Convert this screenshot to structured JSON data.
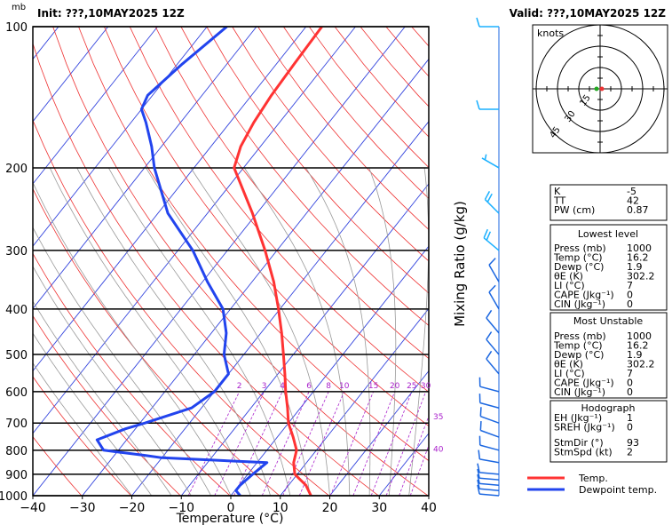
{
  "header": {
    "init": "Init: ???,10MAY2025  12Z",
    "valid": "Valid: ???,10MAY2025  12Z",
    "pressure_unit": "mb"
  },
  "chart_data": {
    "type": "line",
    "title": "",
    "xlabel": "Temperature (°C)",
    "ylabel": "",
    "xlim": [
      -40,
      40
    ],
    "ylim": [
      1000,
      100
    ],
    "y_scale": "log",
    "skew": true,
    "x_ticks": [
      "−40",
      "−30",
      "−20",
      "−10",
      "0",
      "10",
      "20",
      "30",
      "40"
    ],
    "y_ticks": [
      "100",
      "200",
      "300",
      "400",
      "500",
      "600",
      "700",
      "800",
      "900",
      "1000"
    ],
    "mixing_ratio_label": "Mixing Ratio (g/kg)",
    "mixing_ratio_values": [
      "2",
      "3",
      "4",
      "6",
      "8",
      "10",
      "15",
      "20",
      "25",
      "30",
      "35",
      "40"
    ],
    "series": [
      {
        "name": "Temp.",
        "color": "#ff3333",
        "points": [
          [
            1000,
            16.2
          ],
          [
            950,
            13.5
          ],
          [
            925,
            11.5
          ],
          [
            900,
            9.5
          ],
          [
            850,
            7.4
          ],
          [
            800,
            6.0
          ],
          [
            750,
            3.2
          ],
          [
            700,
            0.0
          ],
          [
            650,
            -2.6
          ],
          [
            600,
            -5.6
          ],
          [
            550,
            -8.6
          ],
          [
            500,
            -12.0
          ],
          [
            450,
            -15.8
          ],
          [
            400,
            -20.3
          ],
          [
            350,
            -25.6
          ],
          [
            300,
            -32.4
          ],
          [
            250,
            -40.9
          ],
          [
            200,
            -51.9
          ],
          [
            180,
            -54.0
          ],
          [
            160,
            -55.2
          ],
          [
            140,
            -56.0
          ],
          [
            120,
            -56.4
          ],
          [
            100,
            -56.8
          ]
        ]
      },
      {
        "name": "Dewpoint temp.",
        "color": "#2244ee",
        "points": [
          [
            1000,
            1.9
          ],
          [
            975,
            0.2
          ],
          [
            950,
            0.2
          ],
          [
            900,
            1.0
          ],
          [
            850,
            2.0
          ],
          [
            830,
            -20.0
          ],
          [
            820,
            -24.0
          ],
          [
            800,
            -33.0
          ],
          [
            760,
            -36.0
          ],
          [
            720,
            -32.0
          ],
          [
            700,
            -29.0
          ],
          [
            650,
            -22.0
          ],
          [
            600,
            -20.0
          ],
          [
            550,
            -20.0
          ],
          [
            500,
            -24.0
          ],
          [
            450,
            -27.0
          ],
          [
            400,
            -31.5
          ],
          [
            350,
            -39.0
          ],
          [
            300,
            -47.0
          ],
          [
            250,
            -58.0
          ],
          [
            200,
            -68.0
          ],
          [
            180,
            -72.0
          ],
          [
            160,
            -77.0
          ],
          [
            150,
            -80.0
          ],
          [
            140,
            -81.0
          ],
          [
            120,
            -79.0
          ],
          [
            100,
            -76.0
          ]
        ]
      }
    ],
    "legend": {
      "position": "bottom-right",
      "entries": [
        "Temp.",
        "Dewpoint temp."
      ]
    }
  },
  "wind_barbs": {
    "colors": {
      "upper": "#1ab0ff",
      "lower": "#1a66e0"
    },
    "levels": [
      {
        "p": 100,
        "dir": 270,
        "kt": 10
      },
      {
        "p": 150,
        "dir": 270,
        "kt": 10
      },
      {
        "p": 200,
        "dir": 300,
        "kt": 5
      },
      {
        "p": 250,
        "dir": 315,
        "kt": 20
      },
      {
        "p": 300,
        "dir": 310,
        "kt": 20
      },
      {
        "p": 350,
        "dir": 330,
        "kt": 10
      },
      {
        "p": 400,
        "dir": 330,
        "kt": 10
      },
      {
        "p": 450,
        "dir": 320,
        "kt": 10
      },
      {
        "p": 500,
        "dir": 320,
        "kt": 10
      },
      {
        "p": 550,
        "dir": 320,
        "kt": 10
      },
      {
        "p": 600,
        "dir": 285,
        "kt": 10
      },
      {
        "p": 650,
        "dir": 285,
        "kt": 10
      },
      {
        "p": 700,
        "dir": 290,
        "kt": 10
      },
      {
        "p": 750,
        "dir": 290,
        "kt": 10
      },
      {
        "p": 800,
        "dir": 285,
        "kt": 10
      },
      {
        "p": 850,
        "dir": 280,
        "kt": 10
      },
      {
        "p": 900,
        "dir": 275,
        "kt": 10
      },
      {
        "p": 925,
        "dir": 275,
        "kt": 10
      },
      {
        "p": 950,
        "dir": 275,
        "kt": 10
      },
      {
        "p": 975,
        "dir": 275,
        "kt": 10
      },
      {
        "p": 1000,
        "dir": 275,
        "kt": 10
      }
    ]
  },
  "hodograph": {
    "unit": "knots",
    "ring_labels": [
      "15",
      "30",
      "45"
    ]
  },
  "indices": {
    "top": [
      {
        "label": "K",
        "value": "-5"
      },
      {
        "label": "TT",
        "value": "42"
      },
      {
        "label": "PW (cm)",
        "value": "0.87"
      }
    ],
    "lowest_level": {
      "title": "Lowest level",
      "rows": [
        {
          "label": "Press (mb)",
          "value": "1000"
        },
        {
          "label": "Temp (°C)",
          "value": "16.2"
        },
        {
          "label": "Dewp (°C)",
          "value": "1.9"
        },
        {
          "label": "θE (K)",
          "value": "302.2"
        },
        {
          "label": "LI (°C)",
          "value": "7"
        },
        {
          "label": "CAPE (Jkg⁻¹)",
          "value": "0"
        },
        {
          "label": "CIN (Jkg⁻¹)",
          "value": "0"
        }
      ]
    },
    "most_unstable": {
      "title": "Most Unstable",
      "rows": [
        {
          "label": "Press (mb)",
          "value": "1000"
        },
        {
          "label": "Temp (°C)",
          "value": "16.2"
        },
        {
          "label": "Dewp (°C)",
          "value": "1.9"
        },
        {
          "label": "θE (K)",
          "value": "302.2"
        },
        {
          "label": "LI (°C)",
          "value": "7"
        },
        {
          "label": "CAPE (Jkg⁻¹)",
          "value": "0"
        },
        {
          "label": "CIN (Jkg⁻¹)",
          "value": "0"
        }
      ]
    },
    "hodograph_box": {
      "title": "Hodograph",
      "rows": [
        {
          "label": "EH (Jkg⁻¹)",
          "value": "1"
        },
        {
          "label": "SREH (Jkg⁻¹)",
          "value": "0"
        }
      ],
      "rows2": [
        {
          "label": "StmDir (°)",
          "value": "93"
        },
        {
          "label": "StmSpd (kt)",
          "value": "2"
        }
      ]
    }
  }
}
